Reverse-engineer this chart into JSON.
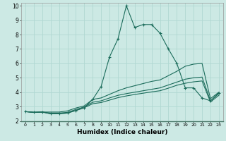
{
  "xlabel": "Humidex (Indice chaleur)",
  "xlim": [
    -0.5,
    23.5
  ],
  "ylim": [
    2,
    10.2
  ],
  "yticks": [
    2,
    3,
    4,
    5,
    6,
    7,
    8,
    9,
    10
  ],
  "xticks": [
    0,
    1,
    2,
    3,
    4,
    5,
    6,
    7,
    8,
    9,
    10,
    11,
    12,
    13,
    14,
    15,
    16,
    17,
    18,
    19,
    20,
    21,
    22,
    23
  ],
  "background_color": "#cce9e4",
  "grid_color": "#b0d8d2",
  "line_color": "#1a6b5a",
  "series": [
    {
      "x": [
        0,
        1,
        2,
        3,
        4,
        5,
        6,
        7,
        8,
        9,
        10,
        11,
        12,
        13,
        14,
        15,
        16,
        17,
        18,
        19,
        20,
        21,
        22,
        23
      ],
      "y": [
        2.65,
        2.6,
        2.62,
        2.62,
        2.62,
        2.7,
        2.9,
        3.05,
        3.5,
        3.6,
        3.85,
        4.1,
        4.3,
        4.45,
        4.6,
        4.75,
        4.85,
        5.15,
        5.45,
        5.8,
        5.95,
        6.0,
        3.55,
        4.0
      ],
      "marker": false
    },
    {
      "x": [
        0,
        1,
        2,
        3,
        4,
        5,
        6,
        7,
        8,
        9,
        10,
        11,
        12,
        13,
        14,
        15,
        16,
        17,
        18,
        19,
        20,
        21,
        22,
        23
      ],
      "y": [
        2.65,
        2.6,
        2.62,
        2.55,
        2.55,
        2.6,
        2.8,
        2.98,
        3.3,
        3.4,
        3.6,
        3.78,
        3.9,
        4.0,
        4.1,
        4.2,
        4.3,
        4.5,
        4.7,
        4.9,
        5.0,
        5.05,
        3.4,
        3.9
      ],
      "marker": false
    },
    {
      "x": [
        0,
        1,
        2,
        3,
        4,
        5,
        6,
        7,
        8,
        9,
        10,
        11,
        12,
        13,
        14,
        15,
        16,
        17,
        18,
        19,
        20,
        21,
        22,
        23
      ],
      "y": [
        2.65,
        2.6,
        2.62,
        2.5,
        2.5,
        2.55,
        2.73,
        2.92,
        3.2,
        3.28,
        3.45,
        3.62,
        3.74,
        3.84,
        3.93,
        4.02,
        4.1,
        4.28,
        4.48,
        4.62,
        4.72,
        4.78,
        3.32,
        3.78
      ],
      "marker": false
    },
    {
      "x": [
        0,
        1,
        2,
        3,
        4,
        5,
        6,
        7,
        8,
        9,
        10,
        11,
        12,
        13,
        14,
        15,
        16,
        17,
        18,
        19,
        20,
        21,
        22,
        23
      ],
      "y": [
        2.65,
        2.6,
        2.62,
        2.5,
        2.5,
        2.55,
        2.73,
        2.92,
        3.5,
        4.4,
        6.45,
        7.7,
        10.0,
        8.5,
        8.7,
        8.7,
        8.1,
        7.0,
        6.0,
        4.3,
        4.3,
        3.6,
        3.4,
        3.95
      ],
      "marker": true
    }
  ]
}
